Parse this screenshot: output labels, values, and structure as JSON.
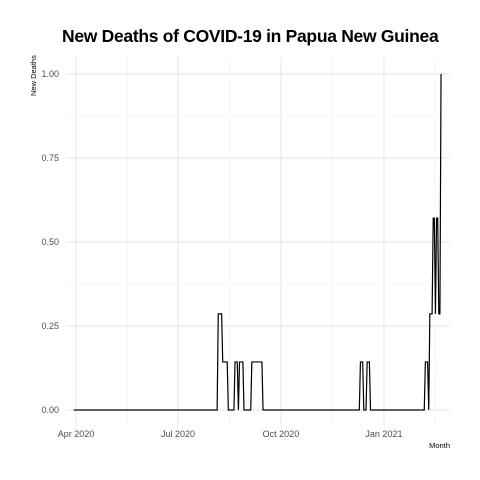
{
  "chart_data": {
    "type": "line",
    "title": "New Deaths of COVID-19 in Papua New Guinea",
    "xlabel": "Month",
    "ylabel": "New Deaths",
    "ylim": [
      -0.05,
      1.0
    ],
    "xlim": [
      "2020-03-23",
      "2021-03-01"
    ],
    "y_ticks": [
      {
        "value": 0.0,
        "label": "0.00"
      },
      {
        "value": 0.25,
        "label": "0.25"
      },
      {
        "value": 0.5,
        "label": "0.50"
      },
      {
        "value": 0.75,
        "label": "0.75"
      },
      {
        "value": 1.0,
        "label": "1.00"
      }
    ],
    "x_ticks": [
      {
        "value": "2020-04-01",
        "label": "Apr 2020"
      },
      {
        "value": "2020-07-01",
        "label": "Jul 2020"
      },
      {
        "value": "2020-10-01",
        "label": "Oct 2020"
      },
      {
        "value": "2021-01-01",
        "label": "Jan 2021"
      }
    ],
    "grid": true,
    "legend": "none",
    "series": [
      {
        "color": "#000000",
        "points": [
          {
            "x": "2020-03-30",
            "y": 0
          },
          {
            "x": "2020-08-05",
            "y": 0
          },
          {
            "x": "2020-08-06",
            "y": 0.286
          },
          {
            "x": "2020-08-09",
            "y": 0.286
          },
          {
            "x": "2020-08-10",
            "y": 0.143
          },
          {
            "x": "2020-08-14",
            "y": 0.143
          },
          {
            "x": "2020-08-15",
            "y": 0
          },
          {
            "x": "2020-08-20",
            "y": 0
          },
          {
            "x": "2020-08-21",
            "y": 0.143
          },
          {
            "x": "2020-08-23",
            "y": 0.143
          },
          {
            "x": "2020-08-24",
            "y": 0
          },
          {
            "x": "2020-08-25",
            "y": 0.143
          },
          {
            "x": "2020-08-28",
            "y": 0.143
          },
          {
            "x": "2020-08-29",
            "y": 0
          },
          {
            "x": "2020-09-04",
            "y": 0
          },
          {
            "x": "2020-09-05",
            "y": 0.143
          },
          {
            "x": "2020-09-14",
            "y": 0.143
          },
          {
            "x": "2020-09-15",
            "y": 0
          },
          {
            "x": "2020-12-10",
            "y": 0
          },
          {
            "x": "2020-12-11",
            "y": 0.143
          },
          {
            "x": "2020-12-13",
            "y": 0.143
          },
          {
            "x": "2020-12-14",
            "y": 0
          },
          {
            "x": "2020-12-16",
            "y": 0
          },
          {
            "x": "2020-12-17",
            "y": 0.143
          },
          {
            "x": "2020-12-19",
            "y": 0.143
          },
          {
            "x": "2020-12-20",
            "y": 0
          },
          {
            "x": "2021-02-06",
            "y": 0
          },
          {
            "x": "2021-02-07",
            "y": 0.143
          },
          {
            "x": "2021-02-09",
            "y": 0.143
          },
          {
            "x": "2021-02-10",
            "y": 0
          },
          {
            "x": "2021-02-11",
            "y": 0.286
          },
          {
            "x": "2021-02-13",
            "y": 0.286
          },
          {
            "x": "2021-02-14",
            "y": 0.571
          },
          {
            "x": "2021-02-15",
            "y": 0.571
          },
          {
            "x": "2021-02-16",
            "y": 0.286
          },
          {
            "x": "2021-02-17",
            "y": 0.571
          },
          {
            "x": "2021-02-18",
            "y": 0.571
          },
          {
            "x": "2021-02-19",
            "y": 0.286
          },
          {
            "x": "2021-02-20",
            "y": 0.286
          },
          {
            "x": "2021-02-21",
            "y": 1.0
          }
        ]
      }
    ]
  }
}
